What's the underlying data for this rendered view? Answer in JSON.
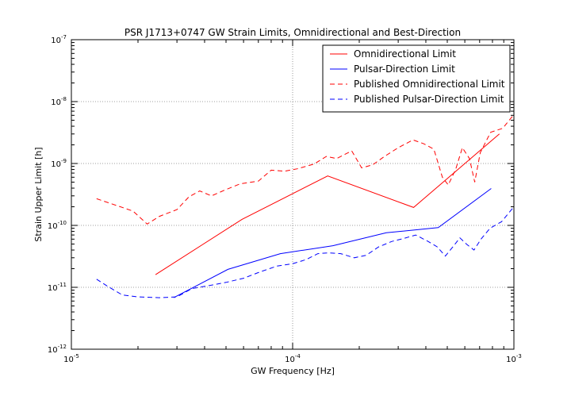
{
  "chart_data": {
    "type": "line",
    "title": "PSR J1713+0747 GW Strain Limits, Omnidirectional and Best-Direction",
    "xlabel": "GW Frequency [Hz]",
    "ylabel": "Strain Upper Limit [h]",
    "xscale": "log",
    "yscale": "log",
    "xlim": [
      1e-05,
      0.001
    ],
    "ylim": [
      1e-12,
      1e-07
    ],
    "grid": true,
    "legend_position": "top-right",
    "x_ticks": [
      {
        "value": 1e-05,
        "base": "10",
        "exp": "-5"
      },
      {
        "value": 0.0001,
        "base": "10",
        "exp": "-4"
      },
      {
        "value": 0.001,
        "base": "10",
        "exp": "-3"
      }
    ],
    "y_ticks": [
      {
        "value": 1e-12,
        "base": "10",
        "exp": "-12"
      },
      {
        "value": 1e-11,
        "base": "10",
        "exp": "-11"
      },
      {
        "value": 1e-10,
        "base": "10",
        "exp": "-10"
      },
      {
        "value": 1e-09,
        "base": "10",
        "exp": "-9"
      },
      {
        "value": 1e-08,
        "base": "10",
        "exp": "-8"
      },
      {
        "value": 1e-07,
        "base": "10",
        "exp": "-7"
      }
    ],
    "series": [
      {
        "name": "Omnidirectional Limit",
        "color": "#ff0000",
        "style": "solid",
        "x": [
          2.4e-05,
          5.9e-05,
          0.000144,
          0.000352,
          0.00086
        ],
        "y": [
          1.6e-11,
          1.25e-10,
          6.3e-10,
          1.95e-10,
          3e-09
        ]
      },
      {
        "name": "Pulsar-Direction Limit",
        "color": "#0000ff",
        "style": "solid",
        "x": [
          2.9e-05,
          5.1e-05,
          8.8e-05,
          0.000152,
          0.000265,
          0.000455,
          0.00079
        ],
        "y": [
          6.8e-12,
          1.95e-11,
          3.5e-11,
          4.7e-11,
          7.6e-11,
          9.2e-11,
          3.95e-10
        ]
      },
      {
        "name": "Published Omnidirectional Limit",
        "color": "#ff0000",
        "style": "dashed",
        "x": [
          1.3e-05,
          1.6e-05,
          1.9e-05,
          2.2e-05,
          2.5e-05,
          3e-05,
          3.4e-05,
          3.8e-05,
          4.3e-05,
          5e-05,
          5.8e-05,
          7e-05,
          8e-05,
          9.2e-05,
          0.000105,
          0.000125,
          0.000142,
          0.000158,
          0.000172,
          0.000185,
          0.000205,
          0.00023,
          0.00026,
          0.0003,
          0.00035,
          0.00039,
          0.000435,
          0.000475,
          0.000505,
          0.000545,
          0.000585,
          0.00063,
          0.000665,
          0.000705,
          0.000785,
          0.00089,
          0.001
        ],
        "y": [
          2.7e-10,
          2.1e-10,
          1.7e-10,
          1.05e-10,
          1.4e-10,
          1.8e-10,
          2.9e-10,
          3.6e-10,
          3e-10,
          3.8e-10,
          4.7e-10,
          5.2e-10,
          7.8e-10,
          7.5e-10,
          8.2e-10,
          9.8e-10,
          1.3e-09,
          1.2e-09,
          1.4e-09,
          1.6e-09,
          8.5e-10,
          9.5e-10,
          1.3e-09,
          1.8e-09,
          2.4e-09,
          2.1e-09,
          1.7e-09,
          6e-10,
          4.5e-10,
          8e-10,
          1.8e-09,
          1.2e-09,
          5e-10,
          1.5e-09,
          3.2e-09,
          3.7e-09,
          6.2e-09
        ]
      },
      {
        "name": "Published Pulsar-Direction Limit",
        "color": "#0000ff",
        "style": "dashed",
        "x": [
          1.3e-05,
          1.45e-05,
          1.7e-05,
          2e-05,
          2.5e-05,
          3e-05,
          3.5e-05,
          4.1e-05,
          5e-05,
          6e-05,
          7.2e-05,
          8.5e-05,
          0.0001,
          0.000115,
          0.00013,
          0.000145,
          0.000165,
          0.00019,
          0.000215,
          0.000245,
          0.00028,
          0.00032,
          0.00036,
          0.00041,
          0.00045,
          0.00049,
          0.00053,
          0.00057,
          0.00061,
          0.00066,
          0.00071,
          0.00078,
          0.00088,
          0.001
        ],
        "y": [
          1.35e-11,
          1.05e-11,
          7.5e-12,
          7e-12,
          6.8e-12,
          7e-12,
          9.5e-12,
          1.05e-11,
          1.2e-11,
          1.4e-11,
          1.8e-11,
          2.2e-11,
          2.4e-11,
          2.8e-11,
          3.5e-11,
          3.6e-11,
          3.5e-11,
          3e-11,
          3.3e-11,
          4.5e-11,
          5.5e-11,
          6.2e-11,
          7e-11,
          5.5e-11,
          4.5e-11,
          3.2e-11,
          4.5e-11,
          6.3e-11,
          5e-11,
          4e-11,
          6e-11,
          9e-11,
          1.15e-10,
          2e-10
        ]
      }
    ]
  }
}
